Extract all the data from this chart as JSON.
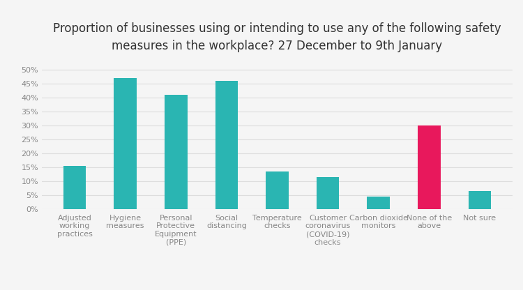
{
  "title": "Proportion of businesses using or intending to use any of the following safety\nmeasures in the workplace? 27 December to 9th January",
  "categories": [
    "Adjusted\nworking\npractices",
    "Hygiene\nmeasures",
    "Personal\nProtective\nEquipment\n(PPE)",
    "Social\ndistancing",
    "Temperature\nchecks",
    "Customer\ncoronavirus\n(COVID-19)\nchecks",
    "Carbon dioxide\nmonitors",
    "None of the\nabove",
    "Not sure"
  ],
  "values": [
    15.5,
    47.0,
    41.0,
    46.0,
    13.5,
    11.5,
    4.5,
    30.0,
    6.5
  ],
  "bar_colors": [
    "#2ab5b2",
    "#2ab5b2",
    "#2ab5b2",
    "#2ab5b2",
    "#2ab5b2",
    "#2ab5b2",
    "#2ab5b2",
    "#e8185c",
    "#2ab5b2"
  ],
  "ylim": [
    0,
    52
  ],
  "yticks": [
    0,
    5,
    10,
    15,
    20,
    25,
    30,
    35,
    40,
    45,
    50
  ],
  "ytick_labels": [
    "0%",
    "5%",
    "10%",
    "15%",
    "20%",
    "25%",
    "30%",
    "35%",
    "40%",
    "45%",
    "50%"
  ],
  "background_color": "#f5f5f5",
  "grid_color": "#dddddd",
  "title_fontsize": 12,
  "tick_fontsize": 8,
  "bar_width": 0.45
}
